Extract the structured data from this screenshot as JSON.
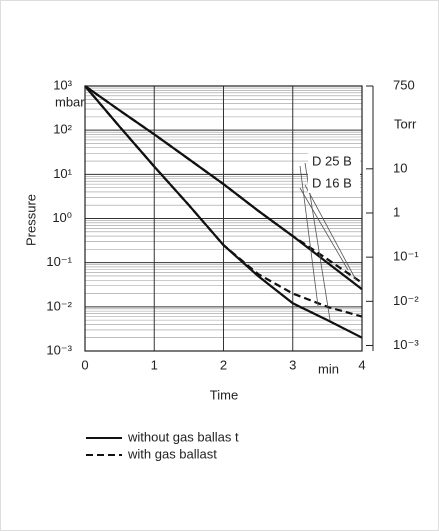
{
  "chart_data": {
    "type": "line",
    "y_label": "Pressure",
    "y_unit": "mbar",
    "y2_unit": "Torr",
    "x_label": "Time",
    "x_unit": "min",
    "log_y": true,
    "grid": true,
    "minor_grid": true,
    "color": "#111111",
    "x": [
      0,
      0.5,
      1,
      1.5,
      2,
      2.5,
      3,
      3.5,
      4
    ],
    "xlim": [
      0,
      4
    ],
    "xticks": [
      0,
      1,
      2,
      3,
      4
    ],
    "ylim": [
      0.001,
      1000
    ],
    "yticks": [
      {
        "value": 1000,
        "label": "10³"
      },
      {
        "value": 100,
        "label": "10²"
      },
      {
        "value": 10,
        "label": "10¹"
      },
      {
        "value": 1,
        "label": "10⁰"
      },
      {
        "value": 0.1,
        "label": "10⁻¹"
      },
      {
        "value": 0.01,
        "label": "10⁻²"
      },
      {
        "value": 0.001,
        "label": "10⁻³"
      }
    ],
    "y2lim": [
      0.00075,
      750
    ],
    "y2ticks": [
      750,
      10,
      1,
      {
        "value": 0.1,
        "label": "10⁻¹"
      },
      {
        "value": 0.01,
        "label": "10⁻²"
      },
      {
        "value": 0.001,
        "label": "10⁻³"
      }
    ],
    "line_styles": [
      {
        "label": "without gas ballas t",
        "dash": "none"
      },
      {
        "label": "with gas ballast",
        "dash": "7 4"
      }
    ],
    "curves": [
      {
        "name": "D 25 B",
        "series": [
          {
            "style": 0,
            "values": [
              1000,
              120,
              15,
              2,
              0.25,
              0.05,
              0.012,
              0.005,
              0.002
            ]
          },
          {
            "style": 1,
            "values": [
              1000,
              120,
              15,
              2,
              0.25,
              0.055,
              0.02,
              0.01,
              0.006
            ]
          }
        ]
      },
      {
        "name": "D 16 B",
        "series": [
          {
            "style": 0,
            "values": [
              1000,
              280,
              80,
              22,
              6,
              1.5,
              0.4,
              0.1,
              0.025
            ]
          },
          {
            "style": 1,
            "values": [
              1000,
              280,
              80,
              22,
              6,
              1.5,
              0.4,
              0.12,
              0.035
            ]
          }
        ]
      }
    ]
  }
}
